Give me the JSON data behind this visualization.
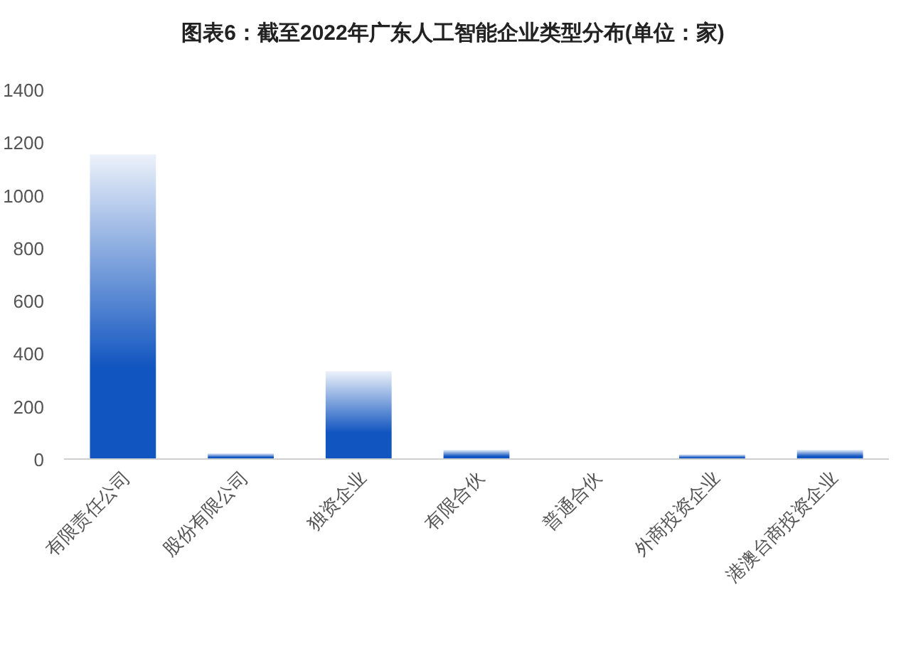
{
  "chart_data": {
    "type": "bar",
    "title": "图表6：截至2022年广东人工智能企业类型分布(单位：家)",
    "categories": [
      "有限责任公司",
      "股份有限公司",
      "独资企业",
      "有限合伙",
      "普通合伙",
      "外商投资企业",
      "港澳台商投资企业"
    ],
    "values": [
      1154,
      22,
      333,
      35,
      0,
      18,
      35
    ],
    "color": "#1155c0",
    "ylim": [
      0,
      1400
    ],
    "yticks": [
      0,
      200,
      400,
      600,
      800,
      1000,
      1200,
      1400
    ],
    "grid": false
  }
}
